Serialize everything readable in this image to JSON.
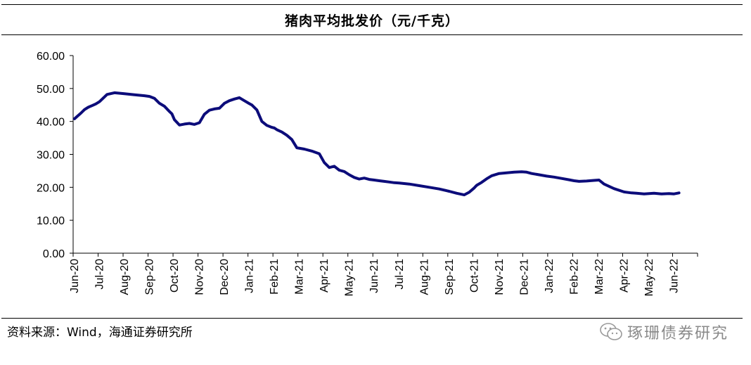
{
  "title": "猪肉平均批发价（元/千克）",
  "source": "资料来源：Wind，海通证券研究所",
  "watermark": {
    "text": "琢珊债券研究",
    "icon": "wechat-icon"
  },
  "colors": {
    "line": "#0c0c7a",
    "axis": "#000000",
    "text": "#000000",
    "watermark": "#8a8a8a"
  },
  "chart_data": {
    "type": "line",
    "title": "猪肉平均批发价（元/千克）",
    "xlabel": "",
    "ylabel": "",
    "ylim": [
      0,
      60
    ],
    "yticks": [
      "0.00",
      "10.00",
      "20.00",
      "30.00",
      "40.00",
      "50.00",
      "60.00"
    ],
    "grid": false,
    "categories": [
      "Jun-20",
      "Jul-20",
      "Aug-20",
      "Sep-20",
      "Oct-20",
      "Nov-20",
      "Dec-20",
      "Jan-21",
      "Feb-21",
      "Mar-21",
      "Apr-21",
      "May-21",
      "Jun-21",
      "Jul-21",
      "Aug-21",
      "Sep-21",
      "Oct-21",
      "Nov-21",
      "Dec-21",
      "Jan-22",
      "Feb-22",
      "Mar-22",
      "Apr-22",
      "May-22",
      "Jun-22"
    ],
    "series": [
      {
        "x": [
          0,
          0.1,
          0.25,
          0.4,
          0.55,
          0.7,
          0.85,
          1.0,
          1.3,
          1.6,
          2.0,
          2.4,
          2.8,
          3.0,
          3.2,
          3.4,
          3.6,
          3.8,
          3.9,
          4.0,
          4.2,
          4.4,
          4.6,
          4.8,
          5.0,
          5.2,
          5.4,
          5.6,
          5.8,
          6.0,
          6.2,
          6.4,
          6.6,
          6.8,
          7.0,
          7.1,
          7.3,
          7.5,
          7.7,
          7.9,
          8.0,
          8.1,
          8.3,
          8.5,
          8.7,
          8.9,
          9.2,
          9.5,
          9.8,
          10.0,
          10.2,
          10.4,
          10.6,
          10.8,
          11.0,
          11.2,
          11.4,
          11.6,
          11.8,
          12.0,
          12.2,
          12.4,
          12.6,
          12.8,
          13.0,
          13.4,
          13.8,
          14.2,
          14.6,
          15.0,
          15.3,
          15.6,
          15.8,
          16.0,
          16.1,
          16.3,
          16.5,
          16.7,
          17.0,
          17.3,
          17.6,
          17.9,
          18.1,
          18.3,
          18.6,
          18.9,
          19.2,
          19.5,
          19.8,
          20.0,
          20.2,
          20.5,
          20.8,
          21.0,
          21.2,
          21.6,
          22.0,
          22.3,
          22.5,
          22.8,
          23.0,
          23.2,
          23.5,
          23.8,
          24.0,
          24.2
        ],
        "values": [
          40.8,
          41.5,
          42.5,
          43.6,
          44.3,
          44.8,
          45.3,
          46.0,
          48.2,
          48.7,
          48.4,
          48.1,
          47.8,
          47.6,
          47.0,
          45.5,
          44.6,
          43.0,
          42.3,
          40.5,
          38.9,
          39.2,
          39.4,
          39.1,
          39.6,
          42.2,
          43.4,
          43.8,
          44.0,
          45.5,
          46.3,
          46.8,
          47.2,
          46.3,
          45.4,
          45.0,
          43.5,
          40.0,
          38.8,
          38.2,
          38.0,
          37.5,
          36.8,
          35.8,
          34.5,
          32.0,
          31.6,
          31.0,
          30.2,
          27.5,
          26.0,
          26.4,
          25.2,
          24.8,
          23.8,
          23.0,
          22.5,
          22.8,
          22.4,
          22.2,
          22.0,
          21.8,
          21.6,
          21.4,
          21.3,
          21.0,
          20.5,
          20.0,
          19.5,
          18.8,
          18.2,
          17.7,
          18.5,
          19.8,
          20.6,
          21.5,
          22.6,
          23.5,
          24.2,
          24.4,
          24.6,
          24.7,
          24.6,
          24.2,
          23.8,
          23.4,
          23.1,
          22.7,
          22.3,
          22.0,
          21.8,
          21.9,
          22.1,
          22.2,
          21.0,
          19.6,
          18.6,
          18.3,
          18.2,
          18.0,
          18.1,
          18.2,
          18.0,
          18.1,
          18.0,
          18.3
        ]
      }
    ]
  }
}
